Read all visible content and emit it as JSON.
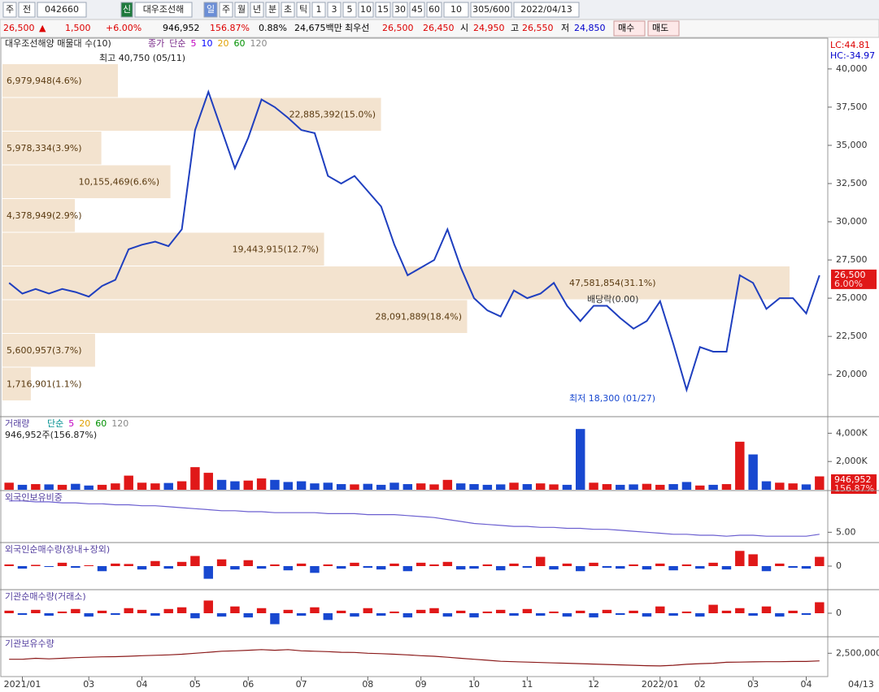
{
  "toolbar": {
    "items": [
      "주",
      "전",
      "042660",
      "신",
      "대우조선해",
      "일",
      "주",
      "월",
      "년",
      "분",
      "초",
      "틱",
      "1",
      "3",
      "5",
      "10",
      "15",
      "30",
      "45",
      "60",
      "10",
      "305/600",
      "2022/04/13"
    ]
  },
  "quote": {
    "items": [
      "26,500",
      "▲",
      "1,500",
      "+6.00%",
      "946,952",
      "156.87%",
      "0.88%",
      "24,675백만",
      "최우선",
      "26,500",
      "26,450",
      "시",
      "24,950",
      "고",
      "26,550",
      "저",
      "24,850",
      "매수",
      "매도"
    ]
  },
  "chart_data": [
    {
      "type": "line",
      "title": "대우조선해양 매물대 수(10)",
      "legend": [
        "종가",
        "단순",
        "5",
        "10",
        "20",
        "60",
        "120"
      ],
      "color": "#1f3fbf",
      "categories": [
        null,
        "2021/01",
        null,
        null,
        null,
        null,
        "03",
        null,
        null,
        null,
        "04",
        null,
        null,
        null,
        "05",
        null,
        null,
        null,
        "06",
        null,
        null,
        null,
        "07",
        null,
        null,
        null,
        null,
        "08",
        null,
        null,
        null,
        "09",
        null,
        null,
        null,
        "10",
        null,
        null,
        null,
        "11",
        null,
        null,
        null,
        null,
        "12",
        null,
        null,
        null,
        null,
        "2022/01",
        null,
        null,
        "02",
        null,
        null,
        null,
        "03",
        null,
        null,
        null,
        "04",
        null
      ],
      "last_date": "04/13",
      "values": [
        26000,
        25300,
        25600,
        25300,
        25600,
        25400,
        25100,
        25800,
        26200,
        28200,
        28500,
        28700,
        28400,
        29500,
        36000,
        38500,
        36000,
        33500,
        35500,
        38000,
        37500,
        36800,
        36000,
        35800,
        33000,
        32500,
        33000,
        32000,
        31000,
        28500,
        26500,
        27000,
        27500,
        29500,
        27000,
        25000,
        24200,
        23800,
        25500,
        25000,
        25300,
        26000,
        24500,
        23500,
        24500,
        24500,
        23700,
        23000,
        23500,
        24800,
        22000,
        19000,
        21800,
        21500,
        21500,
        26500,
        26000,
        24300,
        25000,
        25000,
        24000,
        26500
      ],
      "ylim": [
        17300,
        41960
      ],
      "yticks": [
        {
          "value": 20000,
          "label": "20,000"
        },
        {
          "value": 22500,
          "label": "22,500"
        },
        {
          "value": 25000,
          "label": "25,000"
        },
        {
          "value": 27500,
          "label": "27,500"
        },
        {
          "value": 30000,
          "label": "30,000"
        },
        {
          "value": 32500,
          "label": "32,500"
        },
        {
          "value": 35000,
          "label": "35,000"
        },
        {
          "value": 37500,
          "label": "37,500"
        },
        {
          "value": 40000,
          "label": "40,000"
        }
      ],
      "annotations": [
        "최고 40,750 (05/11)",
        "최저 18,300 (01/27)",
        "배당락(0.00)"
      ],
      "last_label": "26,500",
      "last_change": "6.00%",
      "lc": "LC:44.81",
      "hc": "HC:-34.97",
      "profile": {
        "values": [
          6979948,
          22885392,
          5978334,
          10155469,
          4378949,
          19443915,
          47581854,
          28091889,
          5600957,
          1716901
        ],
        "value_labels": [
          "6,979,948(4.6%)",
          "22,885,392(15.0%)",
          "5,978,334(3.9%)",
          "10,155,469(6.6%)",
          "4,378,949(2.9%)",
          "19,443,915(12.7%)",
          "47,581,854(31.1%)",
          "28,091,889(18.4%)",
          "5,600,957(3.7%)",
          "1,716,901(1.1%)"
        ],
        "color": "#f3e3cf"
      }
    },
    {
      "type": "bar",
      "title": "거래량",
      "legend": [
        "단순",
        "5",
        "20",
        "60",
        "120"
      ],
      "subtitle": "946,952주(156.87%)",
      "last_label": "946,952",
      "last_change": "156.87%",
      "values": [
        500000,
        350000,
        400000,
        380000,
        350000,
        420000,
        300000,
        350000,
        450000,
        1000000,
        500000,
        450000,
        480000,
        600000,
        1600000,
        1200000,
        700000,
        600000,
        650000,
        800000,
        700000,
        550000,
        600000,
        450000,
        500000,
        400000,
        380000,
        420000,
        350000,
        500000,
        400000,
        450000,
        380000,
        700000,
        450000,
        400000,
        350000,
        380000,
        500000,
        400000,
        450000,
        380000,
        350000,
        4300000,
        500000,
        400000,
        350000,
        380000,
        420000,
        350000,
        400000,
        550000,
        300000,
        350000,
        400000,
        3400000,
        2500000,
        600000,
        500000,
        450000,
        380000,
        946952
      ],
      "ylim": [
        0,
        5000000
      ],
      "yticks": [
        {
          "value": 2000000,
          "label": "2,000K"
        },
        {
          "value": 4000000,
          "label": "4,000K"
        }
      ]
    },
    {
      "type": "line",
      "title": "외국인보유비중",
      "color": "#6b5fd0",
      "values": [
        8.2,
        8.2,
        8.1,
        8.1,
        8.0,
        8.0,
        7.9,
        7.9,
        7.8,
        7.8,
        7.7,
        7.7,
        7.6,
        7.5,
        7.4,
        7.3,
        7.2,
        7.2,
        7.1,
        7.1,
        7.0,
        7.0,
        7.0,
        7.0,
        6.9,
        6.9,
        6.9,
        6.8,
        6.8,
        6.8,
        6.7,
        6.6,
        6.5,
        6.3,
        6.1,
        5.9,
        5.8,
        5.7,
        5.6,
        5.6,
        5.5,
        5.5,
        5.4,
        5.4,
        5.3,
        5.3,
        5.2,
        5.1,
        5.0,
        4.9,
        4.8,
        4.8,
        4.7,
        4.7,
        4.6,
        4.7,
        4.7,
        4.6,
        4.6,
        4.6,
        4.6,
        4.8
      ],
      "ylim": [
        4.2,
        9
      ],
      "yticks": [
        {
          "value": 5,
          "label": "5.00"
        }
      ]
    },
    {
      "type": "bar",
      "title": "외국인순매수량(장내+장외)",
      "values": [
        20000,
        -30000,
        15000,
        -10000,
        40000,
        -20000,
        10000,
        -60000,
        30000,
        25000,
        -40000,
        60000,
        -30000,
        50000,
        120000,
        -150000,
        80000,
        -40000,
        70000,
        -30000,
        20000,
        -50000,
        30000,
        -80000,
        20000,
        -30000,
        40000,
        -20000,
        -40000,
        30000,
        -60000,
        40000,
        20000,
        50000,
        -40000,
        -30000,
        20000,
        -50000,
        30000,
        -20000,
        110000,
        -40000,
        30000,
        -60000,
        40000,
        -20000,
        -30000,
        20000,
        -40000,
        30000,
        -50000,
        20000,
        -30000,
        40000,
        -40000,
        180000,
        140000,
        -60000,
        30000,
        -20000,
        -30000,
        110000
      ],
      "ylim": [
        -250000,
        250000
      ],
      "yticks": [
        0
      ]
    },
    {
      "type": "bar",
      "title": "기관순매수량(거래소)",
      "values": [
        30000,
        -20000,
        40000,
        -30000,
        20000,
        50000,
        -40000,
        30000,
        -20000,
        60000,
        40000,
        -30000,
        50000,
        70000,
        -60000,
        150000,
        -40000,
        80000,
        -50000,
        60000,
        -130000,
        40000,
        -30000,
        70000,
        -80000,
        30000,
        -40000,
        60000,
        -30000,
        20000,
        -50000,
        40000,
        60000,
        -40000,
        30000,
        -50000,
        20000,
        40000,
        -30000,
        50000,
        -30000,
        20000,
        -40000,
        30000,
        -50000,
        40000,
        -20000,
        30000,
        -40000,
        80000,
        -30000,
        20000,
        -40000,
        100000,
        30000,
        60000,
        -30000,
        80000,
        -40000,
        30000,
        -20000,
        130000
      ],
      "ylim": [
        -250000,
        250000
      ],
      "yticks": [
        0
      ]
    },
    {
      "type": "line",
      "title": "기관보유수량",
      "color": "#8b1a1a",
      "values": [
        2200000,
        2200000,
        2250000,
        2220000,
        2250000,
        2280000,
        2300000,
        2320000,
        2330000,
        2350000,
        2380000,
        2400000,
        2420000,
        2450000,
        2500000,
        2550000,
        2600000,
        2620000,
        2650000,
        2680000,
        2650000,
        2680000,
        2620000,
        2600000,
        2580000,
        2550000,
        2540000,
        2500000,
        2480000,
        2450000,
        2420000,
        2380000,
        2350000,
        2300000,
        2250000,
        2200000,
        2150000,
        2100000,
        2080000,
        2060000,
        2040000,
        2020000,
        2000000,
        1980000,
        1960000,
        1940000,
        1920000,
        1900000,
        1880000,
        1870000,
        1900000,
        1950000,
        1980000,
        2000000,
        2050000,
        2060000,
        2070000,
        2080000,
        2080000,
        2090000,
        2090000,
        2120000
      ],
      "ylim": [
        1500000,
        3200000
      ],
      "yticks": [
        {
          "value": 2500000,
          "label": "2,500,000"
        }
      ]
    }
  ]
}
